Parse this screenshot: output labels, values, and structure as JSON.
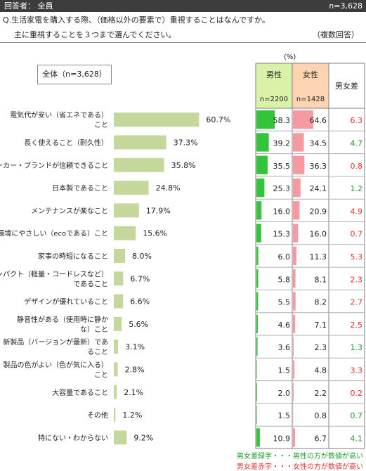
{
  "header": {
    "respondent": "回答者： 全員",
    "n": "n=3,628"
  },
  "question": {
    "line1": "Q.生活家電を購入する際、（価格以外の要素で）重視することはなんですか。",
    "line2": "主に重視することを３つまで選んでください。",
    "note": "（複数回答）"
  },
  "unit": "(%)",
  "total_label": "全体（n=3,628）",
  "table_headers": {
    "male": "男性",
    "male_n": "n=2200",
    "female": "女性",
    "female_n": "n=1428",
    "diff": "男女差"
  },
  "legend": {
    "green": "男女差緑字・・・男性の方が数値が高い",
    "red": "男女差赤字・・・女性の方が数値が高い"
  },
  "colors": {
    "bar": "#c5d89b",
    "male_bar": "#33c43a",
    "female_bar": "#f59aa0",
    "male_header": "#d9f2a8",
    "female_header": "#fcd4b2",
    "diff_green": "#1c9e2c",
    "diff_red": "#e8312c",
    "border": "#7f7f7f"
  },
  "chart_data": {
    "type": "bar",
    "orientation": "horizontal",
    "xlim": [
      0,
      100
    ],
    "categories": [
      [
        "電気代が安い（省エネである）",
        "こと"
      ],
      [
        "長く使えること（耐久性）"
      ],
      [
        "メーカー・ブランドが信頼できること"
      ],
      [
        "日本製であること"
      ],
      [
        "メンテナンスが楽なこと"
      ],
      [
        "環境にやさしい（ecoである）こと"
      ],
      [
        "家事の時短になること"
      ],
      [
        "コンパクト（軽量・コードレスなど）",
        "であること"
      ],
      [
        "デザインが優れていること"
      ],
      [
        "静音性がある（使用時に静か",
        "な）こと"
      ],
      [
        "新製品（バージョンが最新）であ",
        "ること"
      ],
      [
        "製品の色がよい（色が気に入る）",
        "こと"
      ],
      [
        "大容量であること"
      ],
      [
        "その他"
      ],
      [
        "特にない・わからない"
      ]
    ],
    "values": [
      60.7,
      37.3,
      35.8,
      24.8,
      17.9,
      15.6,
      8.0,
      6.7,
      6.6,
      5.6,
      3.1,
      2.8,
      2.1,
      1.2,
      9.2
    ],
    "value_labels": [
      "60.7%",
      "37.3%",
      "35.8%",
      "24.8%",
      "17.9%",
      "15.6%",
      "8.0%",
      "6.7%",
      "6.6%",
      "5.6%",
      "3.1%",
      "2.8%",
      "2.1%",
      "1.2%",
      "9.2%"
    ],
    "male": [
      "58.3",
      "39.2",
      "35.5",
      "25.3",
      "16.0",
      "15.3",
      "6.0",
      "5.8",
      "5.5",
      "4.6",
      "3.6",
      "1.5",
      "2.0",
      "1.5",
      "10.9"
    ],
    "female": [
      "64.6",
      "34.5",
      "36.3",
      "24.1",
      "20.9",
      "16.0",
      "11.3",
      "8.1",
      "8.2",
      "7.1",
      "2.3",
      "4.8",
      "2.2",
      "0.8",
      "6.7"
    ],
    "diff": [
      "6.3",
      "4.7",
      "0.8",
      "1.2",
      "4.9",
      "0.7",
      "5.3",
      "2.3",
      "2.7",
      "2.5",
      "1.3",
      "3.3",
      "0.2",
      "0.7",
      "4.1"
    ],
    "diff_higher": [
      "female",
      "male",
      "female",
      "male",
      "female",
      "female",
      "female",
      "female",
      "female",
      "female",
      "male",
      "female",
      "female",
      "male",
      "male"
    ]
  }
}
